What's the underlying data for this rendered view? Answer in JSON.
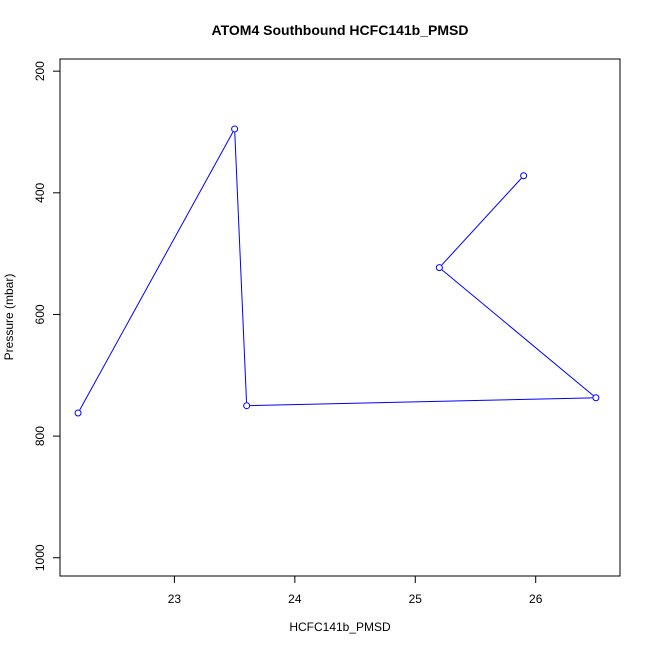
{
  "chart_data": {
    "type": "line",
    "title": "ATOM4 Southbound HCFC141b_PMSD",
    "xlabel": "HCFC141b_PMSD",
    "ylabel": "Pressure (mbar)",
    "xlim": [
      22.05,
      26.7
    ],
    "ylim": [
      1030,
      180
    ],
    "y_reversed": true,
    "x_ticks": [
      23,
      24,
      25,
      26
    ],
    "y_ticks": [
      200,
      400,
      600,
      800,
      1000
    ],
    "grid": false,
    "legend": "none",
    "series": [
      {
        "color": "#0000ff",
        "markers": "open-circle",
        "points": [
          {
            "x": 22.2,
            "y": 762
          },
          {
            "x": 23.5,
            "y": 295
          },
          {
            "x": 23.6,
            "y": 750
          },
          {
            "x": 26.5,
            "y": 737
          },
          {
            "x": 25.2,
            "y": 523
          },
          {
            "x": 25.9,
            "y": 372
          }
        ]
      }
    ]
  }
}
